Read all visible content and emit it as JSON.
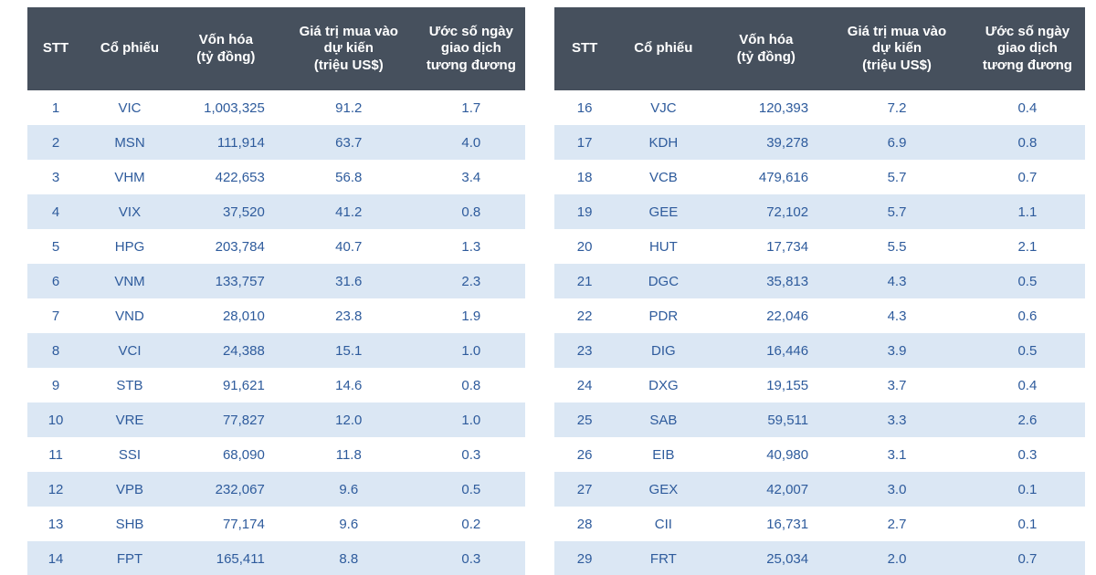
{
  "colors": {
    "header_bg": "#46505d",
    "header_text": "#ffffff",
    "row_text": "#2e5b9c",
    "stripe_bg": "#dbe7f4",
    "page_bg": "#ffffff"
  },
  "column_keys": [
    "stt",
    "ticker",
    "market-cap",
    "buy-value",
    "trading-days"
  ],
  "header_lines": [
    "STT",
    "Cổ phiếu",
    "Vốn hóa\n(tỷ đồng)",
    "Giá trị mua vào\ndự kiến\n(triệu US$)",
    "Ước số ngày\ngiao dịch\ntương đương"
  ],
  "chart_data": [
    {
      "type": "table",
      "title": "",
      "columns": [
        "STT",
        "Cổ phiếu",
        "Vốn hóa (tỷ đồng)",
        "Giá trị mua vào dự kiến (triệu US$)",
        "Ước số ngày giao dịch tương đương"
      ],
      "rows": [
        [
          1,
          "VIC",
          1003325,
          91.2,
          1.7
        ],
        [
          2,
          "MSN",
          111914,
          63.7,
          4.0
        ],
        [
          3,
          "VHM",
          422653,
          56.8,
          3.4
        ],
        [
          4,
          "VIX",
          37520,
          41.2,
          0.8
        ],
        [
          5,
          "HPG",
          203784,
          40.7,
          1.3
        ],
        [
          6,
          "VNM",
          133757,
          31.6,
          2.3
        ],
        [
          7,
          "VND",
          28010,
          23.8,
          1.9
        ],
        [
          8,
          "VCI",
          24388,
          15.1,
          1.0
        ],
        [
          9,
          "STB",
          91621,
          14.6,
          0.8
        ],
        [
          10,
          "VRE",
          77827,
          12.0,
          1.0
        ],
        [
          11,
          "SSI",
          68090,
          11.8,
          0.3
        ],
        [
          12,
          "VPB",
          232067,
          9.6,
          0.5
        ],
        [
          13,
          "SHB",
          77174,
          9.6,
          0.2
        ],
        [
          14,
          "FPT",
          165411,
          8.8,
          0.3
        ]
      ]
    },
    {
      "type": "table",
      "title": "",
      "columns": [
        "STT",
        "Cổ phiếu",
        "Vốn hóa (tỷ đồng)",
        "Giá trị mua vào dự kiến (triệu US$)",
        "Ước số ngày giao dịch tương đương"
      ],
      "rows": [
        [
          16,
          "VJC",
          120393,
          7.2,
          0.4
        ],
        [
          17,
          "KDH",
          39278,
          6.9,
          0.8
        ],
        [
          18,
          "VCB",
          479616,
          5.7,
          0.7
        ],
        [
          19,
          "GEE",
          72102,
          5.7,
          1.1
        ],
        [
          20,
          "HUT",
          17734,
          5.5,
          2.1
        ],
        [
          21,
          "DGC",
          35813,
          4.3,
          0.5
        ],
        [
          22,
          "PDR",
          22046,
          4.3,
          0.6
        ],
        [
          23,
          "DIG",
          16446,
          3.9,
          0.5
        ],
        [
          24,
          "DXG",
          19155,
          3.7,
          0.4
        ],
        [
          25,
          "SAB",
          59511,
          3.3,
          2.6
        ],
        [
          26,
          "EIB",
          40980,
          3.1,
          0.3
        ],
        [
          27,
          "GEX",
          42007,
          3.0,
          0.1
        ],
        [
          28,
          "CII",
          16731,
          2.7,
          0.1
        ],
        [
          29,
          "FRT",
          25034,
          2.0,
          0.7
        ]
      ]
    }
  ]
}
